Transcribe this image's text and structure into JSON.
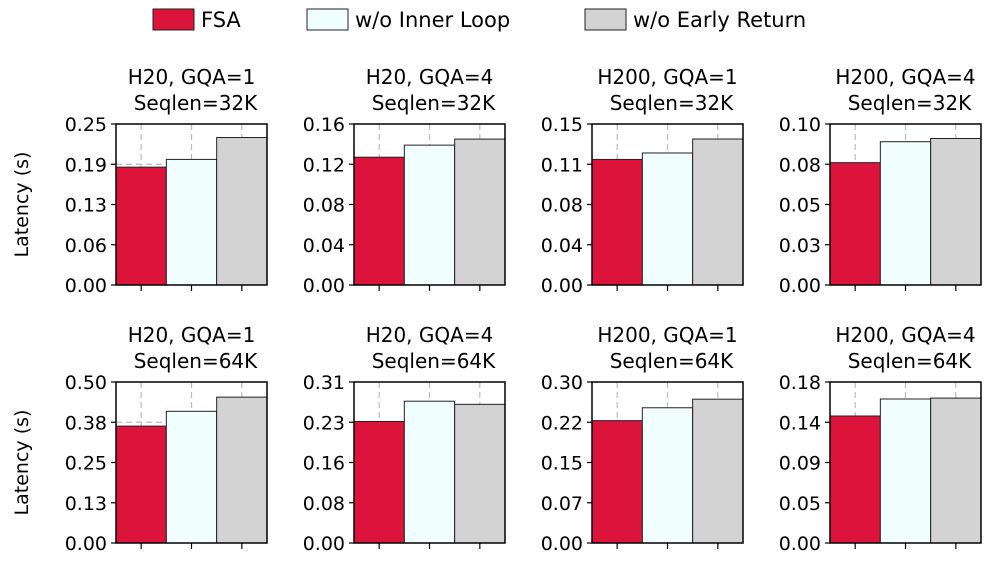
{
  "legend": {
    "items": [
      {
        "label": "FSA",
        "color": "#dc143c"
      },
      {
        "label": "w/o Inner Loop",
        "color": "#f0fffe"
      },
      {
        "label": "w/o Early Return",
        "color": "#d3d3d3"
      }
    ]
  },
  "ylabel": "Latency (s)",
  "chart_data": [
    {
      "type": "bar",
      "title": [
        "H20, GQA=1",
        "Seqlen=32K"
      ],
      "ylim": [
        0,
        0.25
      ],
      "ticks": [
        "0.00",
        "0.06",
        "0.13",
        "0.19",
        "0.25"
      ],
      "series": [
        {
          "name": "FSA",
          "values": [
            0.183
          ]
        },
        {
          "name": "w/o Inner Loop",
          "values": [
            0.195
          ]
        },
        {
          "name": "w/o Early Return",
          "values": [
            0.229
          ]
        }
      ]
    },
    {
      "type": "bar",
      "title": [
        "H20, GQA=4",
        "Seqlen=32K"
      ],
      "ylim": [
        0,
        0.16
      ],
      "ticks": [
        "0.00",
        "0.04",
        "0.08",
        "0.12",
        "0.16"
      ],
      "series": [
        {
          "name": "FSA",
          "values": [
            0.127
          ]
        },
        {
          "name": "w/o Inner Loop",
          "values": [
            0.139
          ]
        },
        {
          "name": "w/o Early Return",
          "values": [
            0.145
          ]
        }
      ]
    },
    {
      "type": "bar",
      "title": [
        "H200, GQA=1",
        "Seqlen=32K"
      ],
      "ylim": [
        0,
        0.15
      ],
      "ticks": [
        "0.00",
        "0.04",
        "0.08",
        "0.11",
        "0.15"
      ],
      "series": [
        {
          "name": "FSA",
          "values": [
            0.117
          ]
        },
        {
          "name": "w/o Inner Loop",
          "values": [
            0.123
          ]
        },
        {
          "name": "w/o Early Return",
          "values": [
            0.136
          ]
        }
      ]
    },
    {
      "type": "bar",
      "title": [
        "H200, GQA=4",
        "Seqlen=32K"
      ],
      "ylim": [
        0,
        0.1
      ],
      "ticks": [
        "0.00",
        "0.03",
        "0.05",
        "0.08",
        "0.10"
      ],
      "series": [
        {
          "name": "FSA",
          "values": [
            0.076
          ]
        },
        {
          "name": "w/o Inner Loop",
          "values": [
            0.089
          ]
        },
        {
          "name": "w/o Early Return",
          "values": [
            0.091
          ]
        }
      ]
    },
    {
      "type": "bar",
      "title": [
        "H20, GQA=1",
        "Seqlen=64K"
      ],
      "ylim": [
        0,
        0.5
      ],
      "ticks": [
        "0.00",
        "0.13",
        "0.25",
        "0.38",
        "0.50"
      ],
      "series": [
        {
          "name": "FSA",
          "values": [
            0.363
          ]
        },
        {
          "name": "w/o Inner Loop",
          "values": [
            0.409
          ]
        },
        {
          "name": "w/o Early Return",
          "values": [
            0.453
          ]
        }
      ]
    },
    {
      "type": "bar",
      "title": [
        "H20, GQA=4",
        "Seqlen=64K"
      ],
      "ylim": [
        0,
        0.31
      ],
      "ticks": [
        "0.00",
        "0.08",
        "0.16",
        "0.23",
        "0.31"
      ],
      "series": [
        {
          "name": "FSA",
          "values": [
            0.234
          ]
        },
        {
          "name": "w/o Inner Loop",
          "values": [
            0.273
          ]
        },
        {
          "name": "w/o Early Return",
          "values": [
            0.267
          ]
        }
      ]
    },
    {
      "type": "bar",
      "title": [
        "H200, GQA=1",
        "Seqlen=64K"
      ],
      "ylim": [
        0,
        0.3
      ],
      "ticks": [
        "0.00",
        "0.07",
        "0.15",
        "0.22",
        "0.30"
      ],
      "series": [
        {
          "name": "FSA",
          "values": [
            0.228
          ]
        },
        {
          "name": "w/o Inner Loop",
          "values": [
            0.252
          ]
        },
        {
          "name": "w/o Early Return",
          "values": [
            0.268
          ]
        }
      ]
    },
    {
      "type": "bar",
      "title": [
        "H200, GQA=4",
        "Seqlen=64K"
      ],
      "ylim": [
        0,
        0.18
      ],
      "ticks": [
        "0.00",
        "0.05",
        "0.09",
        "0.14",
        "0.18"
      ],
      "series": [
        {
          "name": "FSA",
          "values": [
            0.142
          ]
        },
        {
          "name": "w/o Inner Loop",
          "values": [
            0.161
          ]
        },
        {
          "name": "w/o Early Return",
          "values": [
            0.162
          ]
        }
      ]
    }
  ]
}
